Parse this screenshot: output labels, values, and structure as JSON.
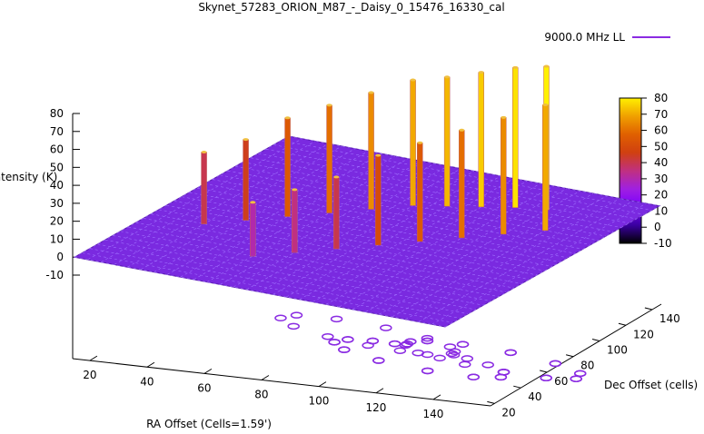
{
  "chart_data": {
    "type": "surface3d",
    "title": "Skynet_57283_ORION_M87_-_Daisy_0_15476_16330_cal",
    "xlabel": "RA Offset (Cells=1.59')",
    "ylabel": "Dec Offset (cells)",
    "zlabel": "Intensity (K)",
    "series": [
      {
        "name": "9000.0 MHz LL",
        "color": "#8a2be2"
      }
    ],
    "x_ticks": [
      "20",
      "40",
      "60",
      "80",
      "100",
      "120",
      "140"
    ],
    "y_ticks": [
      "20",
      "40",
      "60",
      "80",
      "100",
      "120",
      "140"
    ],
    "z_ticks": [
      "-10",
      "0",
      "10",
      "20",
      "30",
      "40",
      "50",
      "60",
      "70",
      "80"
    ],
    "zlim": [
      -10,
      80
    ],
    "colorbar": {
      "ticks": [
        "-10",
        "0",
        "10",
        "20",
        "30",
        "40",
        "50",
        "60",
        "70",
        "80"
      ],
      "range": [
        -10,
        80
      ],
      "colors": [
        "#000000",
        "#3a00a0",
        "#7a00ff",
        "#a020e0",
        "#c03080",
        "#d04010",
        "#e06000",
        "#f0a000",
        "#fff000"
      ]
    },
    "peaks": [
      {
        "x": 30,
        "y": 60,
        "z": 40
      },
      {
        "x": 40,
        "y": 70,
        "z": 45
      },
      {
        "x": 50,
        "y": 80,
        "z": 55
      },
      {
        "x": 60,
        "y": 90,
        "z": 60
      },
      {
        "x": 70,
        "y": 100,
        "z": 65
      },
      {
        "x": 80,
        "y": 110,
        "z": 70
      },
      {
        "x": 90,
        "y": 115,
        "z": 72
      },
      {
        "x": 100,
        "y": 120,
        "z": 75
      },
      {
        "x": 110,
        "y": 125,
        "z": 78
      },
      {
        "x": 120,
        "y": 128,
        "z": 80
      },
      {
        "x": 60,
        "y": 40,
        "z": 30
      },
      {
        "x": 70,
        "y": 50,
        "z": 35
      },
      {
        "x": 80,
        "y": 60,
        "z": 40
      },
      {
        "x": 90,
        "y": 70,
        "z": 50
      },
      {
        "x": 100,
        "y": 80,
        "z": 55
      },
      {
        "x": 110,
        "y": 90,
        "z": 60
      },
      {
        "x": 120,
        "y": 100,
        "z": 65
      },
      {
        "x": 130,
        "y": 110,
        "z": 70
      }
    ]
  }
}
